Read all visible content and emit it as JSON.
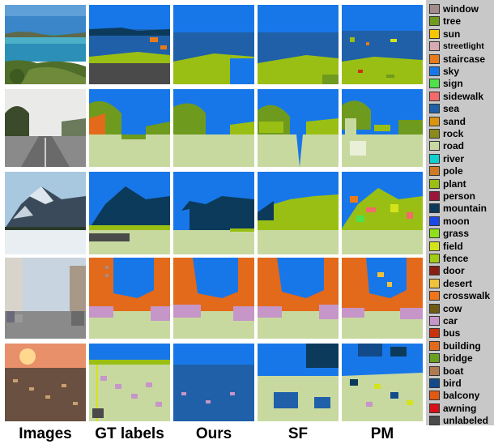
{
  "columns": [
    "Images",
    "GT labels",
    "Ours",
    "SF",
    "PM"
  ],
  "colors": {
    "window": "#a58c8c",
    "tree": "#6e9a1e",
    "sun": "#f7c600",
    "streetlight": "#d9a9b3",
    "staircase": "#e87a1c",
    "sky": "#1877e8",
    "sign": "#4fe04a",
    "sidewalk": "#f26a6a",
    "sea": "#1f60a8",
    "sand": "#dc9410",
    "rock": "#8b8b1c",
    "road": "#c8d9a0",
    "river": "#12cfcf",
    "pole": "#cf7a24",
    "plant": "#9abf14",
    "person": "#99163a",
    "mountain": "#0b3a5a",
    "moon": "#1a49e8",
    "grass": "#8fe01a",
    "field": "#d4e31a",
    "fence": "#a1cc14",
    "door": "#8a1e12",
    "desert": "#f0c23a",
    "crosswalk": "#f0741a",
    "cow": "#6f5b14",
    "car": "#c696c8",
    "bus": "#c8320c",
    "building": "#e26a1a",
    "bridge": "#6aa020",
    "boat": "#b07a50",
    "bird": "#124a8a",
    "balcony": "#e05a12",
    "awning": "#d8101a",
    "unlabeled": "#4a4a4a"
  },
  "legend": [
    {
      "label": "window",
      "color": "#a58c8c"
    },
    {
      "label": "tree",
      "color": "#6e9a1e"
    },
    {
      "label": "sun",
      "color": "#f7c600"
    },
    {
      "label": "streetlight",
      "color": "#d9a9b3"
    },
    {
      "label": "staircase",
      "color": "#e87a1c"
    },
    {
      "label": "sky",
      "color": "#1877e8"
    },
    {
      "label": "sign",
      "color": "#4fe04a"
    },
    {
      "label": "sidewalk",
      "color": "#f26a6a"
    },
    {
      "label": "sea",
      "color": "#1f60a8"
    },
    {
      "label": "sand",
      "color": "#dc9410"
    },
    {
      "label": "rock",
      "color": "#8b8b1c"
    },
    {
      "label": "road",
      "color": "#c8d9a0"
    },
    {
      "label": "river",
      "color": "#12cfcf"
    },
    {
      "label": "pole",
      "color": "#cf7a24"
    },
    {
      "label": "plant",
      "color": "#9abf14"
    },
    {
      "label": "person",
      "color": "#99163a"
    },
    {
      "label": "mountain",
      "color": "#0b3a5a"
    },
    {
      "label": "moon",
      "color": "#1a49e8"
    },
    {
      "label": "grass",
      "color": "#8fe01a"
    },
    {
      "label": "field",
      "color": "#d4e31a"
    },
    {
      "label": "fence",
      "color": "#a1cc14"
    },
    {
      "label": "door",
      "color": "#8a1e12"
    },
    {
      "label": "desert",
      "color": "#f0c23a"
    },
    {
      "label": "crosswalk",
      "color": "#f0741a"
    },
    {
      "label": "cow",
      "color": "#6f5b14"
    },
    {
      "label": "car",
      "color": "#c696c8"
    },
    {
      "label": "bus",
      "color": "#c8320c"
    },
    {
      "label": "building",
      "color": "#e26a1a"
    },
    {
      "label": "bridge",
      "color": "#6aa020"
    },
    {
      "label": "boat",
      "color": "#b07a50"
    },
    {
      "label": "bird",
      "color": "#124a8a"
    },
    {
      "label": "balcony",
      "color": "#e05a12"
    },
    {
      "label": "awning",
      "color": "#d8101a"
    },
    {
      "label": "unlabeled",
      "color": "#4a4a4a"
    }
  ]
}
